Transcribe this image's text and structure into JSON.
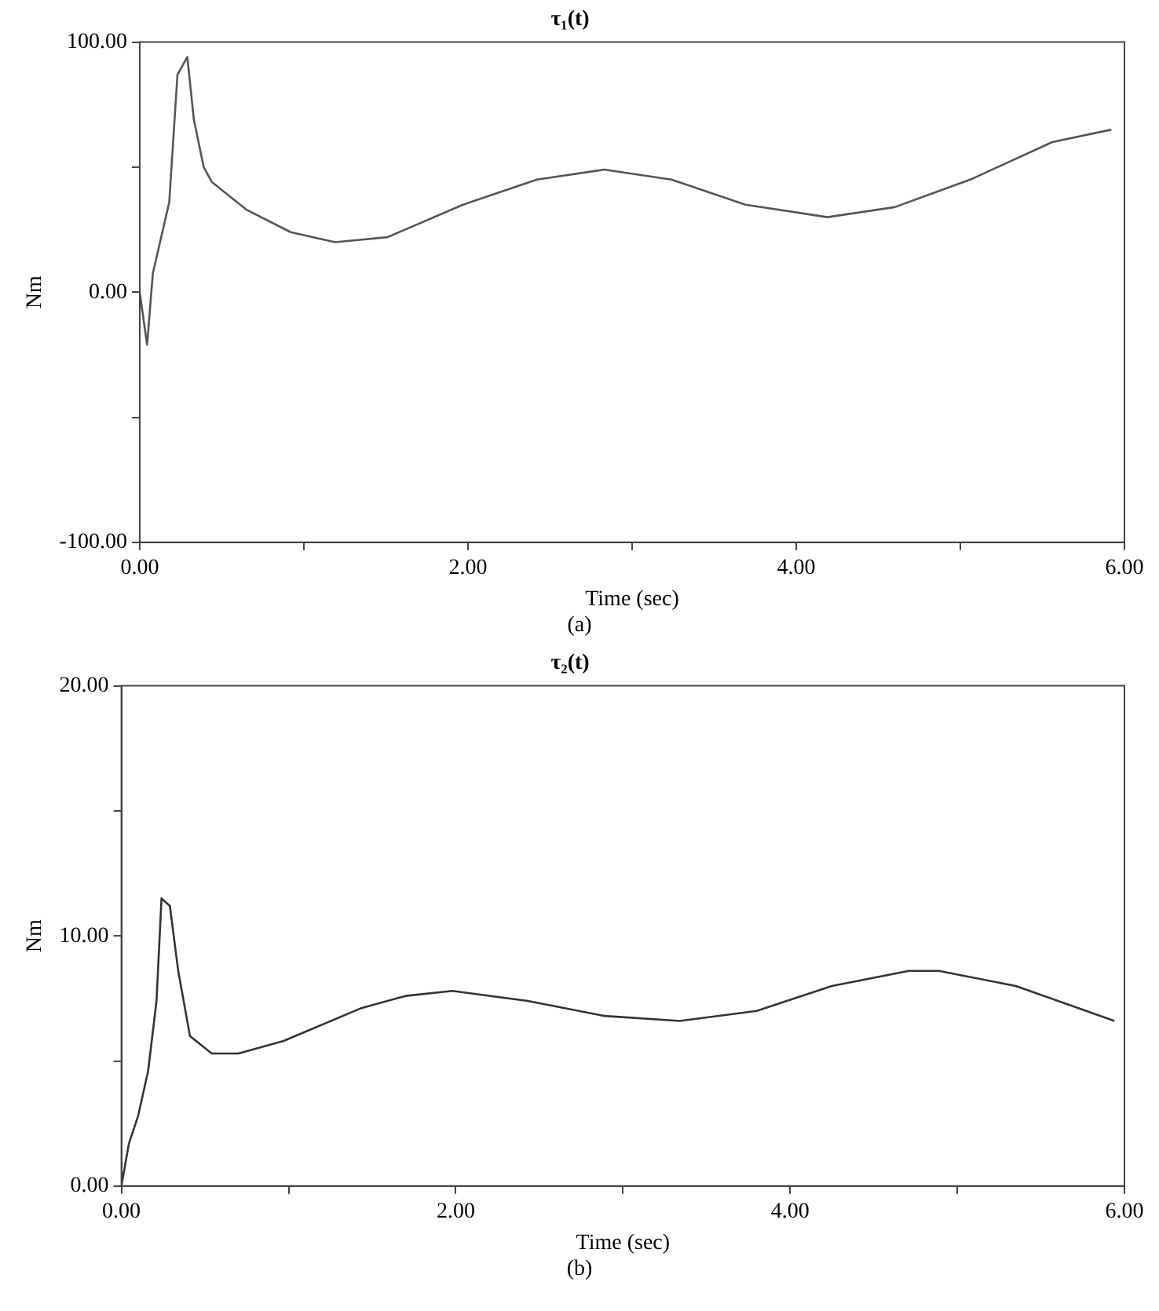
{
  "chart_data": [
    {
      "type": "line",
      "title": "τ₁(t)",
      "xlabel": "Time (sec)",
      "ylabel": "Nm",
      "annotations": [
        "(a)"
      ],
      "color": "#555555",
      "x": [
        0,
        0.045,
        0.08,
        0.18,
        0.23,
        0.29,
        0.33,
        0.39,
        0.44,
        0.65,
        0.92,
        1.19,
        1.51,
        1.97,
        2.42,
        2.83,
        3.24,
        3.69,
        4.19,
        4.6,
        5.06,
        5.56,
        5.92
      ],
      "values": [
        0,
        -21,
        7.5,
        36,
        87,
        94,
        69,
        50,
        44,
        33,
        24,
        20,
        22,
        35,
        45,
        49,
        45,
        35,
        30,
        34,
        45,
        60,
        65
      ],
      "xlim": [
        0,
        6
      ],
      "ylim": [
        -100,
        100
      ],
      "xticks": [
        {
          "value": 0,
          "label": "0.00"
        },
        {
          "value": 1,
          "label": null
        },
        {
          "value": 2,
          "label": "2.00"
        },
        {
          "value": 3,
          "label": null
        },
        {
          "value": 4,
          "label": "4.00"
        },
        {
          "value": 5,
          "label": null
        },
        {
          "value": 6,
          "label": "6.00"
        }
      ],
      "yticks": [
        {
          "value": -100,
          "label": "-100.00"
        },
        {
          "value": -50,
          "label": null
        },
        {
          "value": 0,
          "label": "0.00"
        },
        {
          "value": 50,
          "label": null
        },
        {
          "value": 100,
          "label": "100.00"
        }
      ]
    },
    {
      "type": "line",
      "title": "τ₂(t)",
      "xlabel": "Time (sec)",
      "ylabel": "Nm",
      "annotations": [
        "(b)"
      ],
      "color": "#333333",
      "x": [
        0,
        0.045,
        0.1,
        0.16,
        0.21,
        0.24,
        0.29,
        0.34,
        0.41,
        0.54,
        0.7,
        0.97,
        1.43,
        1.7,
        1.98,
        2.43,
        2.89,
        3.34,
        3.8,
        4.25,
        4.71,
        4.89,
        5.35,
        5.94
      ],
      "values": [
        0,
        1.7,
        2.8,
        4.6,
        7.4,
        11.5,
        11.2,
        8.6,
        6.0,
        5.3,
        5.3,
        5.8,
        7.1,
        7.6,
        7.8,
        7.4,
        6.8,
        6.6,
        7.0,
        8.0,
        8.6,
        8.6,
        8.0,
        6.6
      ],
      "xlim": [
        0,
        6
      ],
      "ylim": [
        0,
        20
      ],
      "xticks": [
        {
          "value": 0,
          "label": "0.00"
        },
        {
          "value": 1,
          "label": null
        },
        {
          "value": 2,
          "label": "2.00"
        },
        {
          "value": 3,
          "label": null
        },
        {
          "value": 4,
          "label": "4.00"
        },
        {
          "value": 5,
          "label": null
        },
        {
          "value": 6,
          "label": "6.00"
        }
      ],
      "yticks": [
        {
          "value": 0,
          "label": "0.00"
        },
        {
          "value": 5,
          "label": null
        },
        {
          "value": 10,
          "label": "10.00"
        },
        {
          "value": 15,
          "label": null
        },
        {
          "value": 20,
          "label": "20.00"
        }
      ]
    }
  ]
}
